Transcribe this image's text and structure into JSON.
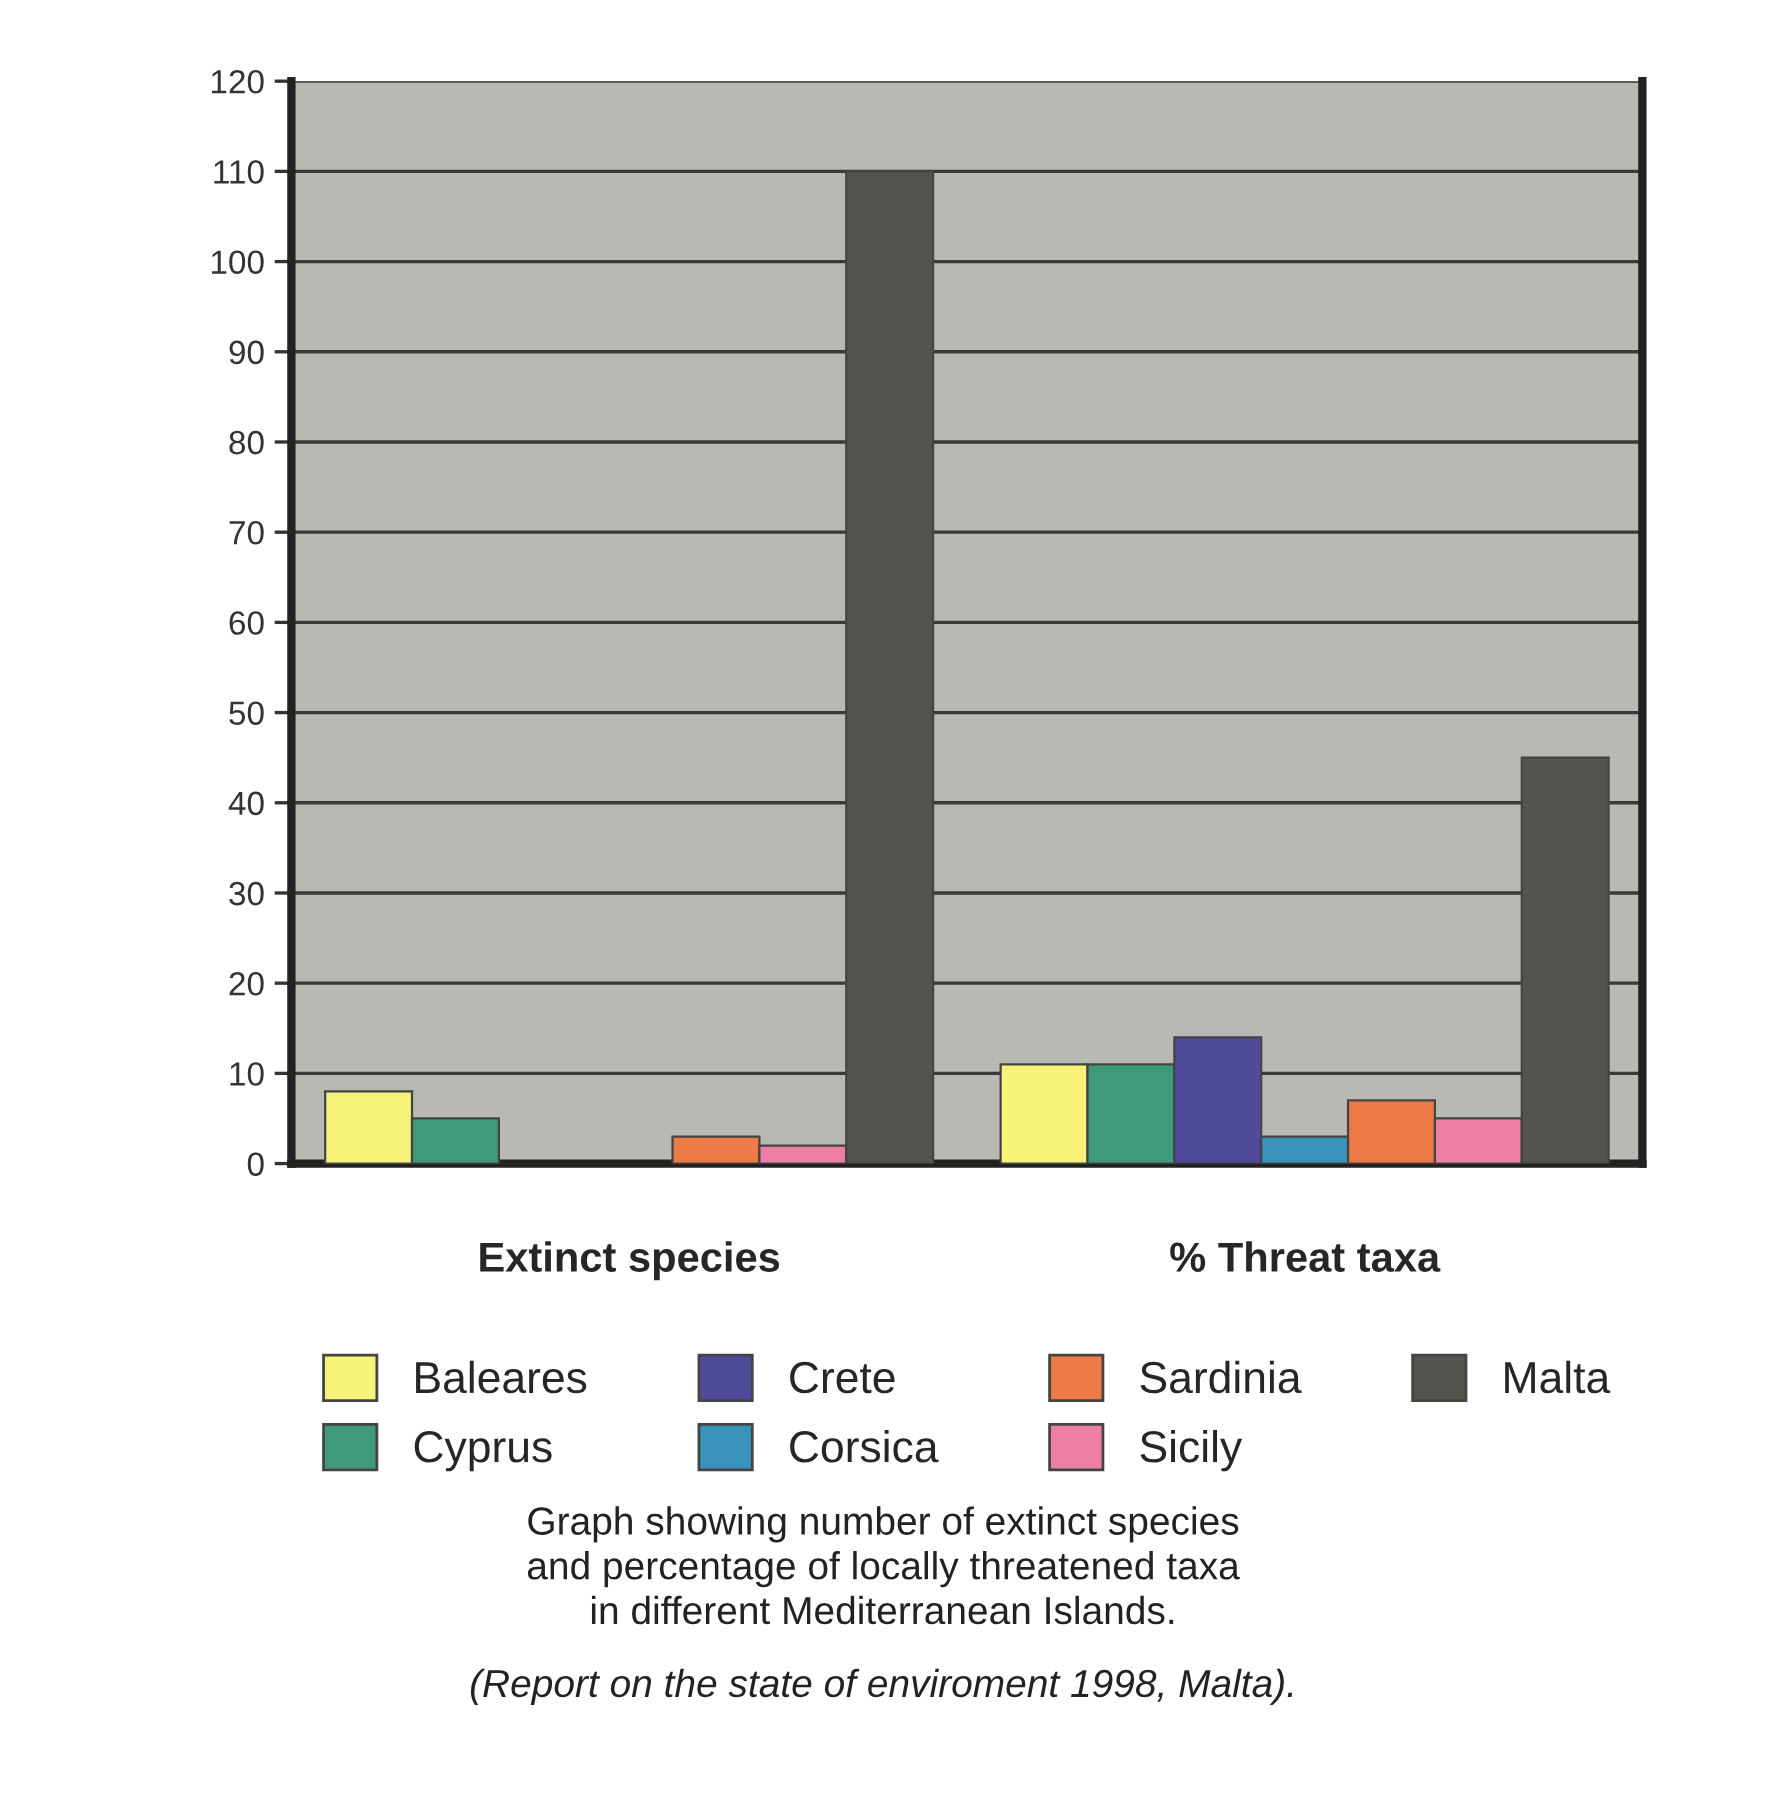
{
  "chart_data": {
    "type": "bar",
    "categories": [
      "Extinct species",
      "% Threat taxa"
    ],
    "series": [
      {
        "name": "Baleares",
        "color": "#f7f37a",
        "values": [
          8,
          11
        ]
      },
      {
        "name": "Cyprus",
        "color": "#3f9a7c",
        "values": [
          5,
          11
        ]
      },
      {
        "name": "Crete",
        "color": "#4f4b9a",
        "values": [
          null,
          14
        ]
      },
      {
        "name": "Corsica",
        "color": "#3a93bd",
        "values": [
          null,
          3
        ]
      },
      {
        "name": "Sardinia",
        "color": "#ee7a45",
        "values": [
          3,
          7
        ]
      },
      {
        "name": "Sicily",
        "color": "#ee7fa4",
        "values": [
          2,
          5
        ]
      },
      {
        "name": "Malta",
        "color": "#55534e",
        "values": [
          110,
          45
        ]
      }
    ],
    "ylim": [
      0,
      120
    ],
    "yticks": [
      0,
      10,
      20,
      30,
      40,
      50,
      60,
      70,
      80,
      90,
      100,
      110,
      120
    ],
    "grid": "y",
    "legend": "bottom",
    "annotations": [
      "Graph showing number of extinct species\nand percentage of locally threatened taxa\nin different Mediterranean Islands.",
      "(Report on the state of enviroment 1998, Malta)."
    ]
  }
}
